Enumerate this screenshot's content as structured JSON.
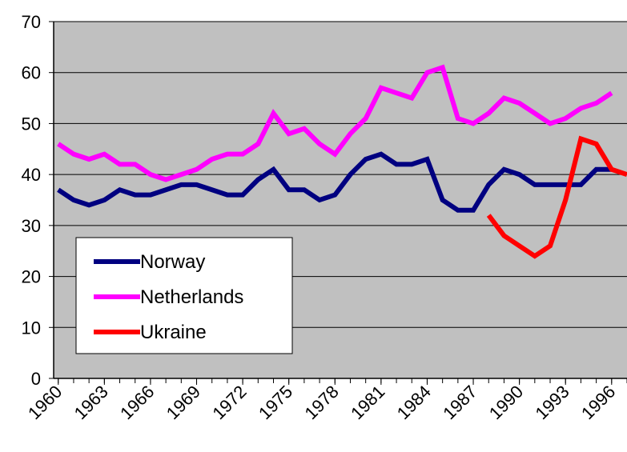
{
  "chart_data": {
    "type": "line",
    "x": [
      1960,
      1961,
      1962,
      1963,
      1964,
      1965,
      1966,
      1967,
      1968,
      1969,
      1970,
      1971,
      1972,
      1973,
      1974,
      1975,
      1976,
      1977,
      1978,
      1979,
      1980,
      1981,
      1982,
      1983,
      1984,
      1985,
      1986,
      1987,
      1988,
      1989,
      1990,
      1991,
      1992,
      1993,
      1994,
      1995,
      1996,
      1997
    ],
    "series": [
      {
        "name": "Norway",
        "color": "#000080",
        "values": [
          37,
          35,
          34,
          35,
          37,
          36,
          36,
          37,
          38,
          38,
          37,
          36,
          36,
          39,
          41,
          37,
          37,
          35,
          36,
          40,
          43,
          44,
          42,
          42,
          43,
          35,
          33,
          33,
          38,
          41,
          40,
          38,
          38,
          38,
          38,
          41,
          41,
          null
        ]
      },
      {
        "name": "Netherlands",
        "color": "#ff00ff",
        "values": [
          46,
          44,
          43,
          44,
          42,
          42,
          40,
          39,
          40,
          41,
          43,
          44,
          44,
          46,
          52,
          48,
          49,
          46,
          44,
          48,
          51,
          57,
          56,
          55,
          60,
          61,
          51,
          50,
          52,
          55,
          54,
          52,
          50,
          51,
          53,
          54,
          56,
          null
        ]
      },
      {
        "name": "Ukraine",
        "color": "#ff0000",
        "values": [
          null,
          null,
          null,
          null,
          null,
          null,
          null,
          null,
          null,
          null,
          null,
          null,
          null,
          null,
          null,
          null,
          null,
          null,
          null,
          null,
          null,
          null,
          null,
          null,
          null,
          null,
          null,
          null,
          32,
          28,
          26,
          24,
          26,
          35,
          47,
          46,
          41,
          40
        ]
      }
    ],
    "xlim": [
      1959.7,
      1997
    ],
    "xticks": [
      1960,
      1963,
      1966,
      1969,
      1972,
      1975,
      1978,
      1981,
      1984,
      1987,
      1990,
      1993,
      1996
    ],
    "ylim": [
      0,
      70
    ],
    "yticks": [
      0,
      10,
      20,
      30,
      40,
      50,
      60,
      70
    ],
    "grid": true,
    "legend": "lower left",
    "background": "#c0c0c0"
  }
}
